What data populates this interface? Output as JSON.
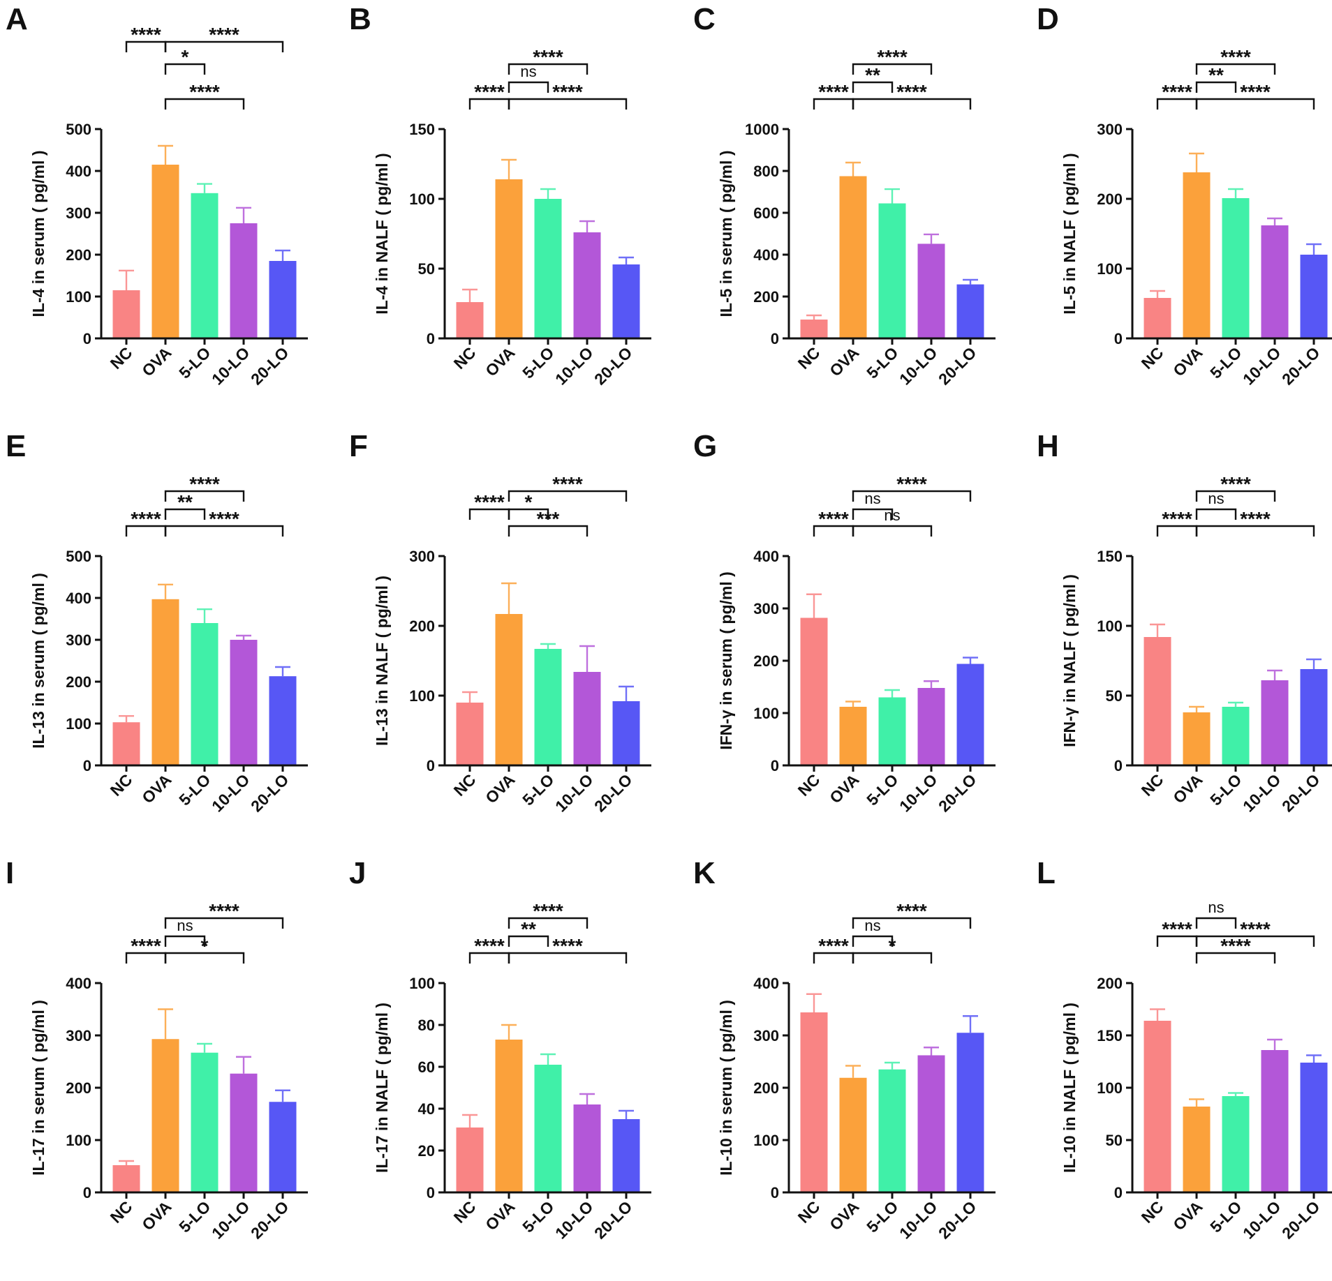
{
  "figure": {
    "categories": [
      "NC",
      "OVA",
      "5-LO",
      "10-LO",
      "20-LO"
    ],
    "colors": [
      "#f98484",
      "#fba13b",
      "#40f0a8",
      "#b357d8",
      "#5757f5"
    ]
  },
  "chart_data": [
    {
      "panel": "A",
      "type": "bar",
      "ylabel": "IL-4 in serum ( pg/ml )",
      "ylim": [
        0,
        500
      ],
      "yticks": [
        0,
        100,
        200,
        300,
        400,
        500
      ],
      "values": [
        115,
        415,
        347,
        275,
        185
      ],
      "errors": [
        47,
        45,
        22,
        37,
        25
      ],
      "comparisons": [
        {
          "from": 0,
          "to": 1,
          "label": "****",
          "level": 4
        },
        {
          "from": 1,
          "to": 4,
          "label": "****",
          "level": 4
        },
        {
          "from": 1,
          "to": 2,
          "label": "*",
          "level": 3
        },
        {
          "from": 1,
          "to": 3,
          "label": "****",
          "level": 1
        }
      ]
    },
    {
      "panel": "B",
      "type": "bar",
      "ylabel": "IL-4 in NALF ( pg/ml )",
      "ylim": [
        0,
        150
      ],
      "yticks": [
        0,
        50,
        100,
        150
      ],
      "values": [
        26,
        114,
        100,
        76,
        53
      ],
      "errors": [
        9,
        14,
        7,
        8,
        5
      ],
      "comparisons": [
        {
          "from": 1,
          "to": 3,
          "label": "****",
          "level": 3
        },
        {
          "from": 1,
          "to": 2,
          "label": "ns",
          "level": 2
        },
        {
          "from": 0,
          "to": 1,
          "label": "****",
          "level": 1
        },
        {
          "from": 1,
          "to": 4,
          "label": "****",
          "level": 1
        }
      ]
    },
    {
      "panel": "C",
      "type": "bar",
      "ylabel": "IL-5 in serum ( pg/ml )",
      "ylim": [
        0,
        1000
      ],
      "yticks": [
        0,
        200,
        400,
        600,
        800,
        1000
      ],
      "values": [
        90,
        775,
        645,
        452,
        258
      ],
      "errors": [
        20,
        65,
        68,
        45,
        22
      ],
      "comparisons": [
        {
          "from": 1,
          "to": 3,
          "label": "****",
          "level": 3
        },
        {
          "from": 1,
          "to": 2,
          "label": "**",
          "level": 2
        },
        {
          "from": 0,
          "to": 1,
          "label": "****",
          "level": 1
        },
        {
          "from": 1,
          "to": 4,
          "label": "****",
          "level": 1
        }
      ]
    },
    {
      "panel": "D",
      "type": "bar",
      "ylabel": "IL-5 in NALF ( pg/ml )",
      "ylim": [
        0,
        300
      ],
      "yticks": [
        0,
        100,
        200,
        300
      ],
      "values": [
        58,
        238,
        201,
        162,
        120
      ],
      "errors": [
        10,
        27,
        13,
        10,
        15
      ],
      "comparisons": [
        {
          "from": 1,
          "to": 3,
          "label": "****",
          "level": 3
        },
        {
          "from": 1,
          "to": 2,
          "label": "**",
          "level": 2
        },
        {
          "from": 0,
          "to": 1,
          "label": "****",
          "level": 1
        },
        {
          "from": 1,
          "to": 4,
          "label": "****",
          "level": 1
        }
      ]
    },
    {
      "panel": "E",
      "type": "bar",
      "ylabel": "IL-13 in serum ( pg/ml )",
      "ylim": [
        0,
        500
      ],
      "yticks": [
        0,
        100,
        200,
        300,
        400,
        500
      ],
      "values": [
        103,
        397,
        340,
        300,
        213
      ],
      "errors": [
        15,
        35,
        33,
        10,
        22
      ],
      "comparisons": [
        {
          "from": 1,
          "to": 3,
          "label": "****",
          "level": 3
        },
        {
          "from": 1,
          "to": 2,
          "label": "**",
          "level": 2
        },
        {
          "from": 0,
          "to": 1,
          "label": "****",
          "level": 1
        },
        {
          "from": 1,
          "to": 4,
          "label": "****",
          "level": 1
        }
      ]
    },
    {
      "panel": "F",
      "type": "bar",
      "ylabel": "IL-13 in NALF ( pg/ml )",
      "ylim": [
        0,
        300
      ],
      "yticks": [
        0,
        100,
        200,
        300
      ],
      "values": [
        90,
        217,
        167,
        134,
        92
      ],
      "errors": [
        15,
        44,
        7,
        37,
        21
      ],
      "comparisons": [
        {
          "from": 1,
          "to": 4,
          "label": "****",
          "level": 3
        },
        {
          "from": 0,
          "to": 1,
          "label": "****",
          "level": 2
        },
        {
          "from": 1,
          "to": 2,
          "label": "*",
          "level": 2
        },
        {
          "from": 1,
          "to": 3,
          "label": "***",
          "level": 1
        }
      ]
    },
    {
      "panel": "G",
      "type": "bar",
      "ylabel": "IFN-γ in serum ( pg/ml )",
      "ylim": [
        0,
        400
      ],
      "yticks": [
        0,
        100,
        200,
        300,
        400
      ],
      "values": [
        282,
        112,
        130,
        148,
        194
      ],
      "errors": [
        45,
        10,
        14,
        13,
        12
      ],
      "comparisons": [
        {
          "from": 1,
          "to": 4,
          "label": "****",
          "level": 3
        },
        {
          "from": 1,
          "to": 2,
          "label": "ns",
          "level": 2
        },
        {
          "from": 0,
          "to": 1,
          "label": "****",
          "level": 1
        },
        {
          "from": 1,
          "to": 3,
          "label": "ns",
          "level": 1
        }
      ]
    },
    {
      "panel": "H",
      "type": "bar",
      "ylabel": "IFN-γ in NALF ( pg/ml )",
      "ylim": [
        0,
        150
      ],
      "yticks": [
        0,
        50,
        100,
        150
      ],
      "values": [
        92,
        38,
        42,
        61,
        69
      ],
      "errors": [
        9,
        4,
        3,
        7,
        7
      ],
      "comparisons": [
        {
          "from": 1,
          "to": 3,
          "label": "****",
          "level": 3
        },
        {
          "from": 1,
          "to": 2,
          "label": "ns",
          "level": 2
        },
        {
          "from": 0,
          "to": 1,
          "label": "****",
          "level": 1
        },
        {
          "from": 1,
          "to": 4,
          "label": "****",
          "level": 1
        }
      ]
    },
    {
      "panel": "I",
      "type": "bar",
      "ylabel": "IL-17 in serum ( pg/ml )",
      "ylim": [
        0,
        400
      ],
      "yticks": [
        0,
        100,
        200,
        300,
        400
      ],
      "values": [
        52,
        293,
        267,
        227,
        173
      ],
      "errors": [
        8,
        57,
        17,
        32,
        22
      ],
      "comparisons": [
        {
          "from": 1,
          "to": 4,
          "label": "****",
          "level": 3
        },
        {
          "from": 1,
          "to": 2,
          "label": "ns",
          "level": 2
        },
        {
          "from": 0,
          "to": 1,
          "label": "****",
          "level": 1
        },
        {
          "from": 1,
          "to": 3,
          "label": "*",
          "level": 1
        }
      ]
    },
    {
      "panel": "J",
      "type": "bar",
      "ylabel": "IL-17 in NALF ( pg/ml )",
      "ylim": [
        0,
        100
      ],
      "yticks": [
        0,
        20,
        40,
        60,
        80,
        100
      ],
      "values": [
        31,
        73,
        61,
        42,
        35
      ],
      "errors": [
        6,
        7,
        5,
        5,
        4
      ],
      "comparisons": [
        {
          "from": 1,
          "to": 3,
          "label": "****",
          "level": 3
        },
        {
          "from": 1,
          "to": 2,
          "label": "**",
          "level": 2
        },
        {
          "from": 0,
          "to": 1,
          "label": "****",
          "level": 1
        },
        {
          "from": 1,
          "to": 4,
          "label": "****",
          "level": 1
        }
      ]
    },
    {
      "panel": "K",
      "type": "bar",
      "ylabel": "IL-10 in serum ( pg/ml )",
      "ylim": [
        0,
        400
      ],
      "yticks": [
        0,
        100,
        200,
        300,
        400
      ],
      "values": [
        344,
        219,
        235,
        262,
        305
      ],
      "errors": [
        35,
        23,
        13,
        15,
        32
      ],
      "comparisons": [
        {
          "from": 1,
          "to": 4,
          "label": "****",
          "level": 3
        },
        {
          "from": 1,
          "to": 2,
          "label": "ns",
          "level": 2
        },
        {
          "from": 0,
          "to": 1,
          "label": "****",
          "level": 1
        },
        {
          "from": 1,
          "to": 3,
          "label": "*",
          "level": 1
        }
      ]
    },
    {
      "panel": "L",
      "type": "bar",
      "ylabel": "IL-10 in NALF ( pg/ml )",
      "ylim": [
        0,
        200
      ],
      "yticks": [
        0,
        50,
        100,
        150,
        200
      ],
      "values": [
        164,
        82,
        92,
        136,
        124
      ],
      "errors": [
        11,
        7,
        3,
        10,
        7
      ],
      "comparisons": [
        {
          "from": 1,
          "to": 2,
          "label": "ns",
          "level": 3
        },
        {
          "from": 0,
          "to": 1,
          "label": "****",
          "level": 2
        },
        {
          "from": 1,
          "to": 4,
          "label": "****",
          "level": 2
        },
        {
          "from": 1,
          "to": 3,
          "label": "****",
          "level": 1
        }
      ]
    }
  ]
}
